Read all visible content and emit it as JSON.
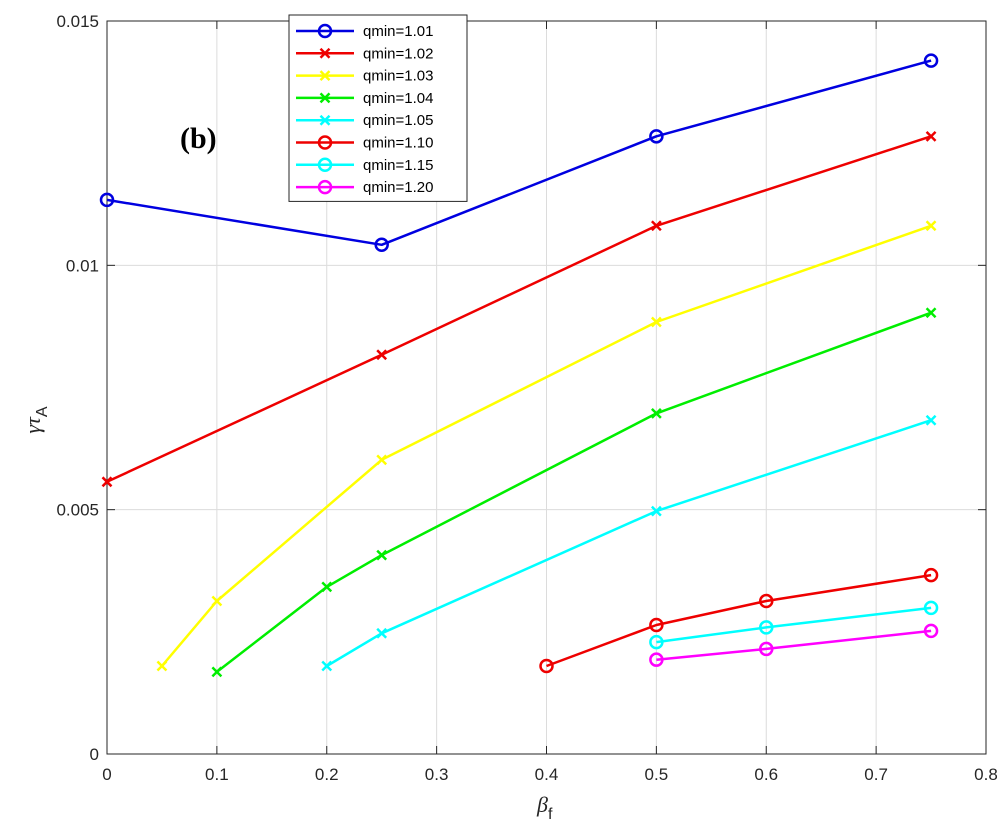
{
  "chart_data": {
    "type": "line",
    "title": "",
    "annotation": "(b)",
    "xlabel": "β",
    "xlabel_sub": "f",
    "ylabel": "γτ",
    "ylabel_sub": "A",
    "xlim": [
      0,
      0.8
    ],
    "ylim": [
      0,
      0.015
    ],
    "xticks": [
      0,
      0.1,
      0.2,
      0.3,
      0.4,
      0.5,
      0.6,
      0.7,
      0.8
    ],
    "xtick_labels": [
      "0",
      "0.1",
      "0.2",
      "0.3",
      "0.4",
      "0.5",
      "0.6",
      "0.7",
      "0.8"
    ],
    "yticks": [
      0,
      0.005,
      0.01,
      0.015
    ],
    "ytick_labels": [
      "0",
      "0.005",
      "0.01",
      "0.015"
    ],
    "grid": true,
    "legend_position": "top-left",
    "series": [
      {
        "name": "qmin=1.01",
        "color": "#0000e0",
        "marker": "circle",
        "x": [
          0,
          0.25,
          0.5,
          0.75
        ],
        "y": [
          0.01134,
          0.01042,
          0.01264,
          0.01419
        ]
      },
      {
        "name": "qmin=1.02",
        "color": "#ee0000",
        "marker": "x",
        "x": [
          0,
          0.25,
          0.5,
          0.75
        ],
        "y": [
          0.00557,
          0.00817,
          0.01081,
          0.01264
        ]
      },
      {
        "name": "qmin=1.03",
        "color": "#ffff00",
        "marker": "x",
        "x": [
          0.05,
          0.1,
          0.25,
          0.5,
          0.75
        ],
        "y": [
          0.0018,
          0.00313,
          0.00602,
          0.00884,
          0.01081
        ]
      },
      {
        "name": "qmin=1.04",
        "color": "#00ee00",
        "marker": "x",
        "x": [
          0.1,
          0.2,
          0.25,
          0.5,
          0.75
        ],
        "y": [
          0.00168,
          0.00342,
          0.00407,
          0.00697,
          0.00903
        ]
      },
      {
        "name": "qmin=1.05",
        "color": "#00ffff",
        "marker": "x",
        "x": [
          0.2,
          0.25,
          0.5,
          0.75
        ],
        "y": [
          0.0018,
          0.00247,
          0.00497,
          0.00683
        ]
      },
      {
        "name": "qmin=1.10",
        "color": "#ee0000",
        "marker": "circle",
        "x": [
          0.4,
          0.5,
          0.6,
          0.75
        ],
        "y": [
          0.0018,
          0.00264,
          0.00313,
          0.00366
        ]
      },
      {
        "name": "qmin=1.15",
        "color": "#00ffff",
        "marker": "circle",
        "x": [
          0.5,
          0.6,
          0.75
        ],
        "y": [
          0.00229,
          0.00259,
          0.00299
        ]
      },
      {
        "name": "qmin=1.20",
        "color": "#ff00ff",
        "marker": "circle",
        "x": [
          0.5,
          0.6,
          0.75
        ],
        "y": [
          0.00193,
          0.00215,
          0.00252
        ]
      }
    ]
  }
}
